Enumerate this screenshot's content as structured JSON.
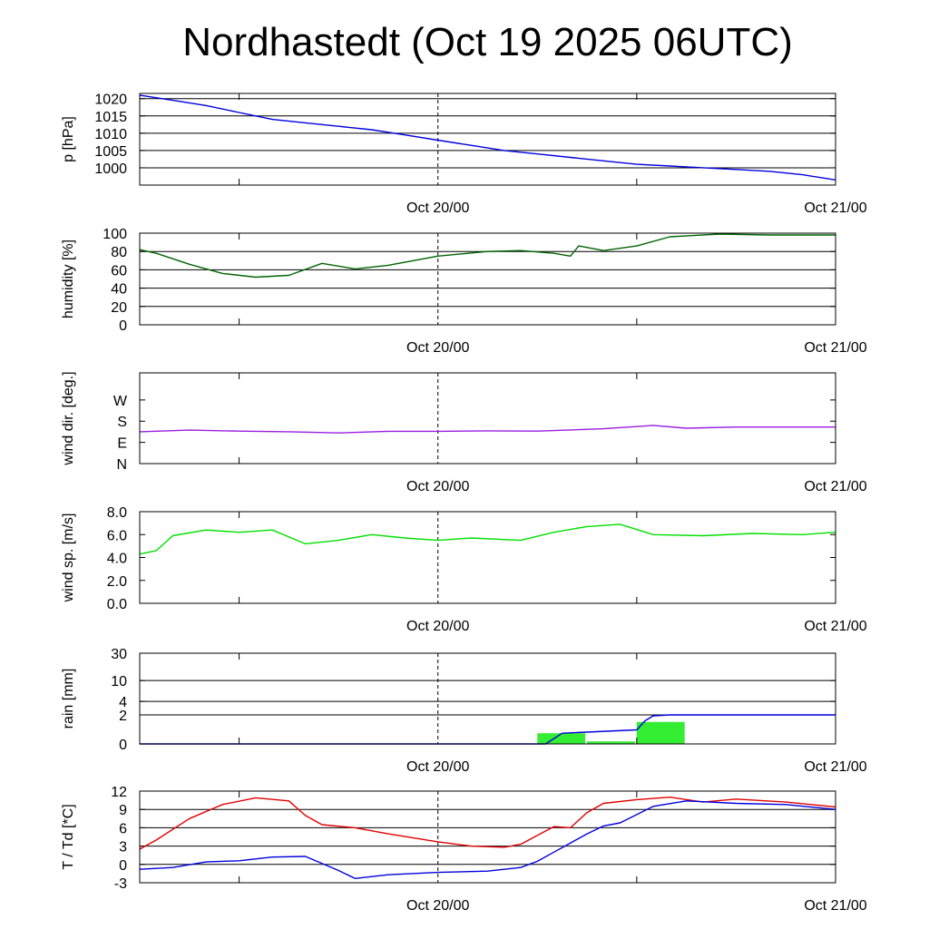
{
  "title": "Nordhastedt (Oct 19 2025 06UTC)",
  "x_axis": {
    "start": "2025-10-19 06:00 UTC",
    "end": "2025-10-21 00:00 UTC",
    "tick_labels": [
      {
        "t": "2025-10-20 00:00 UTC",
        "label": "Oct 20/00"
      },
      {
        "t": "2025-10-21 00:00 UTC",
        "label": "Oct 21/00"
      }
    ],
    "minor_ticks": [
      "2025-10-19 12:00 UTC",
      "2025-10-20 12:00 UTC"
    ],
    "divider": "2025-10-20 00:00 UTC"
  },
  "chart_data": [
    {
      "type": "line",
      "ylabel": "p [hPa]",
      "ylim": [
        995,
        1021.5
      ],
      "yticks": [
        1000,
        1005,
        1010,
        1015,
        1020
      ],
      "tick_labels": [
        "1000",
        "1005",
        "1010",
        "1015",
        "1020"
      ],
      "grid": true,
      "series": [
        {
          "color": "#0000dd",
          "points": [
            [
              "2025-10-19 06:00 UTC",
              1021.0
            ],
            [
              "2025-10-19 08:00 UTC",
              1019.5
            ],
            [
              "2025-10-19 10:00 UTC",
              1018.0
            ],
            [
              "2025-10-19 12:00 UTC",
              1016.0
            ],
            [
              "2025-10-19 14:00 UTC",
              1014.0
            ],
            [
              "2025-10-19 16:00 UTC",
              1013.0
            ],
            [
              "2025-10-19 18:00 UTC",
              1012.0
            ],
            [
              "2025-10-19 20:00 UTC",
              1011.0
            ],
            [
              "2025-10-19 22:00 UTC",
              1009.5
            ],
            [
              "2025-10-20 00:00 UTC",
              1008.0
            ],
            [
              "2025-10-20 02:00 UTC",
              1006.5
            ],
            [
              "2025-10-20 04:00 UTC",
              1005.0
            ],
            [
              "2025-10-20 06:00 UTC",
              1004.0
            ],
            [
              "2025-10-20 08:00 UTC",
              1003.0
            ],
            [
              "2025-10-20 10:00 UTC",
              1002.0
            ],
            [
              "2025-10-20 12:00 UTC",
              1001.0
            ],
            [
              "2025-10-20 14:00 UTC",
              1000.5
            ],
            [
              "2025-10-20 16:00 UTC",
              1000.0
            ],
            [
              "2025-10-20 18:00 UTC",
              999.5
            ],
            [
              "2025-10-20 20:00 UTC",
              999.0
            ],
            [
              "2025-10-20 22:00 UTC",
              998.0
            ],
            [
              "2025-10-21 00:00 UTC",
              996.5
            ]
          ]
        }
      ]
    },
    {
      "type": "line",
      "ylabel": "humidity [%]",
      "ylim": [
        0,
        100
      ],
      "yticks": [
        0,
        20,
        40,
        60,
        80,
        100
      ],
      "tick_labels": [
        "0",
        "20",
        "40",
        "60",
        "80",
        "100"
      ],
      "grid": true,
      "series": [
        {
          "color": "#006400",
          "points": [
            [
              "2025-10-19 06:00 UTC",
              82
            ],
            [
              "2025-10-19 07:00 UTC",
              78
            ],
            [
              "2025-10-19 09:00 UTC",
              66
            ],
            [
              "2025-10-19 11:00 UTC",
              56
            ],
            [
              "2025-10-19 13:00 UTC",
              52
            ],
            [
              "2025-10-19 15:00 UTC",
              54
            ],
            [
              "2025-10-19 17:00 UTC",
              67
            ],
            [
              "2025-10-19 19:00 UTC",
              61
            ],
            [
              "2025-10-19 21:00 UTC",
              65
            ],
            [
              "2025-10-20 00:00 UTC",
              75
            ],
            [
              "2025-10-20 03:00 UTC",
              80
            ],
            [
              "2025-10-20 05:00 UTC",
              81
            ],
            [
              "2025-10-20 07:00 UTC",
              78
            ],
            [
              "2025-10-20 08:00 UTC",
              75
            ],
            [
              "2025-10-20 08:30 UTC",
              86
            ],
            [
              "2025-10-20 10:00 UTC",
              81
            ],
            [
              "2025-10-20 12:00 UTC",
              86
            ],
            [
              "2025-10-20 14:00 UTC",
              96
            ],
            [
              "2025-10-20 17:00 UTC",
              99
            ],
            [
              "2025-10-20 20:00 UTC",
              98
            ],
            [
              "2025-10-21 00:00 UTC",
              98
            ]
          ]
        }
      ]
    },
    {
      "type": "line",
      "ylabel": "wind dir. [deg.]",
      "ylim": [
        0,
        385
      ],
      "yticks": [
        0,
        90,
        180,
        270
      ],
      "tick_labels": [
        "N",
        "E",
        "S",
        "W"
      ],
      "grid": false,
      "series": [
        {
          "color": "#9a1ee0",
          "points": [
            [
              "2025-10-19 06:00 UTC",
              135
            ],
            [
              "2025-10-19 09:00 UTC",
              142
            ],
            [
              "2025-10-19 12:00 UTC",
              138
            ],
            [
              "2025-10-19 15:00 UTC",
              135
            ],
            [
              "2025-10-19 18:00 UTC",
              130
            ],
            [
              "2025-10-19 21:00 UTC",
              137
            ],
            [
              "2025-10-20 00:00 UTC",
              137
            ],
            [
              "2025-10-20 03:00 UTC",
              139
            ],
            [
              "2025-10-20 06:00 UTC",
              138
            ],
            [
              "2025-10-20 08:00 UTC",
              143
            ],
            [
              "2025-10-20 10:00 UTC",
              148
            ],
            [
              "2025-10-20 13:00 UTC",
              162
            ],
            [
              "2025-10-20 15:00 UTC",
              150
            ],
            [
              "2025-10-20 18:00 UTC",
              155
            ],
            [
              "2025-10-21 00:00 UTC",
              155
            ]
          ]
        }
      ]
    },
    {
      "type": "line",
      "ylabel": "wind sp. [m/s]",
      "ylim": [
        0,
        8
      ],
      "yticks": [
        0,
        2,
        4,
        6,
        8
      ],
      "tick_labels": [
        "0.0",
        "2.0",
        "4.0",
        "6.0",
        "8.0"
      ],
      "grid": false,
      "series": [
        {
          "color": "#00e000",
          "points": [
            [
              "2025-10-19 06:00 UTC",
              4.3
            ],
            [
              "2025-10-19 07:00 UTC",
              4.6
            ],
            [
              "2025-10-19 08:00 UTC",
              5.9
            ],
            [
              "2025-10-19 10:00 UTC",
              6.4
            ],
            [
              "2025-10-19 12:00 UTC",
              6.2
            ],
            [
              "2025-10-19 14:00 UTC",
              6.4
            ],
            [
              "2025-10-19 16:00 UTC",
              5.2
            ],
            [
              "2025-10-19 18:00 UTC",
              5.5
            ],
            [
              "2025-10-19 20:00 UTC",
              6.0
            ],
            [
              "2025-10-19 22:00 UTC",
              5.7
            ],
            [
              "2025-10-20 00:00 UTC",
              5.5
            ],
            [
              "2025-10-20 02:00 UTC",
              5.7
            ],
            [
              "2025-10-20 05:00 UTC",
              5.5
            ],
            [
              "2025-10-20 07:00 UTC",
              6.2
            ],
            [
              "2025-10-20 09:00 UTC",
              6.7
            ],
            [
              "2025-10-20 11:00 UTC",
              6.9
            ],
            [
              "2025-10-20 13:00 UTC",
              6.0
            ],
            [
              "2025-10-20 16:00 UTC",
              5.9
            ],
            [
              "2025-10-20 19:00 UTC",
              6.1
            ],
            [
              "2025-10-20 22:00 UTC",
              6.0
            ],
            [
              "2025-10-21 00:00 UTC",
              6.2
            ]
          ]
        }
      ]
    },
    {
      "type": "bar",
      "ylabel": "rain [mm]",
      "ylim": [
        0,
        30
      ],
      "yticks": [
        0,
        2,
        4,
        10,
        30
      ],
      "tick_labels": [
        "0",
        "2",
        "4",
        "10",
        "30"
      ],
      "grid": true,
      "bars": {
        "color": "#33ee33",
        "items": [
          {
            "start": "2025-10-20 06:00 UTC",
            "end": "2025-10-20 09:00 UTC",
            "value": 0.5
          },
          {
            "start": "2025-10-20 09:00 UTC",
            "end": "2025-10-20 12:00 UTC",
            "value": 0.1
          },
          {
            "start": "2025-10-20 12:00 UTC",
            "end": "2025-10-20 15:00 UTC",
            "value": 1.3
          }
        ]
      },
      "series": [
        {
          "color": "#0000dd",
          "points": [
            [
              "2025-10-19 06:00 UTC",
              0.0
            ],
            [
              "2025-10-20 06:30 UTC",
              0.0
            ],
            [
              "2025-10-20 07:30 UTC",
              0.5
            ],
            [
              "2025-10-20 12:00 UTC",
              0.7
            ],
            [
              "2025-10-20 12:30 UTC",
              1.4
            ],
            [
              "2025-10-20 13:00 UTC",
              1.9
            ],
            [
              "2025-10-20 14:00 UTC",
              2.0
            ],
            [
              "2025-10-21 00:00 UTC",
              2.0
            ]
          ]
        }
      ]
    },
    {
      "type": "line",
      "ylabel": "T / Td [*C]",
      "ylim": [
        -3,
        12
      ],
      "yticks": [
        -3,
        0,
        3,
        6,
        9,
        12
      ],
      "tick_labels": [
        "-3",
        "0",
        "3",
        "6",
        "9",
        "12"
      ],
      "grid": true,
      "series": [
        {
          "color": "#e00000",
          "points": [
            [
              "2025-10-19 06:00 UTC",
              2.5
            ],
            [
              "2025-10-19 07:00 UTC",
              4.0
            ],
            [
              "2025-10-19 09:00 UTC",
              7.5
            ],
            [
              "2025-10-19 11:00 UTC",
              9.8
            ],
            [
              "2025-10-19 13:00 UTC",
              10.9
            ],
            [
              "2025-10-19 15:00 UTC",
              10.4
            ],
            [
              "2025-10-19 16:00 UTC",
              8.0
            ],
            [
              "2025-10-19 17:00 UTC",
              6.5
            ],
            [
              "2025-10-19 19:00 UTC",
              6.0
            ],
            [
              "2025-10-19 21:00 UTC",
              5.0
            ],
            [
              "2025-10-20 00:00 UTC",
              3.7
            ],
            [
              "2025-10-20 02:00 UTC",
              3.0
            ],
            [
              "2025-10-20 04:00 UTC",
              2.8
            ],
            [
              "2025-10-20 05:00 UTC",
              3.3
            ],
            [
              "2025-10-20 07:00 UTC",
              6.2
            ],
            [
              "2025-10-20 08:00 UTC",
              6.0
            ],
            [
              "2025-10-20 09:00 UTC",
              8.5
            ],
            [
              "2025-10-20 10:00 UTC",
              10.0
            ],
            [
              "2025-10-20 12:00 UTC",
              10.6
            ],
            [
              "2025-10-20 14:00 UTC",
              11.0
            ],
            [
              "2025-10-20 16:00 UTC",
              10.2
            ],
            [
              "2025-10-20 18:00 UTC",
              10.7
            ],
            [
              "2025-10-20 21:00 UTC",
              10.2
            ],
            [
              "2025-10-21 00:00 UTC",
              9.4
            ]
          ]
        },
        {
          "color": "#0000dd",
          "points": [
            [
              "2025-10-19 06:00 UTC",
              -0.8
            ],
            [
              "2025-10-19 08:00 UTC",
              -0.5
            ],
            [
              "2025-10-19 10:00 UTC",
              0.4
            ],
            [
              "2025-10-19 12:00 UTC",
              0.6
            ],
            [
              "2025-10-19 14:00 UTC",
              1.2
            ],
            [
              "2025-10-19 16:00 UTC",
              1.3
            ],
            [
              "2025-10-19 18:00 UTC",
              -1.0
            ],
            [
              "2025-10-19 19:00 UTC",
              -2.3
            ],
            [
              "2025-10-19 21:00 UTC",
              -1.7
            ],
            [
              "2025-10-20 00:00 UTC",
              -1.3
            ],
            [
              "2025-10-20 03:00 UTC",
              -1.1
            ],
            [
              "2025-10-20 05:00 UTC",
              -0.5
            ],
            [
              "2025-10-20 06:00 UTC",
              0.5
            ],
            [
              "2025-10-20 07:00 UTC",
              2.0
            ],
            [
              "2025-10-20 08:00 UTC",
              3.5
            ],
            [
              "2025-10-20 09:00 UTC",
              5.0
            ],
            [
              "2025-10-20 10:00 UTC",
              6.3
            ],
            [
              "2025-10-20 11:00 UTC",
              6.8
            ],
            [
              "2025-10-20 13:00 UTC",
              9.5
            ],
            [
              "2025-10-20 15:00 UTC",
              10.4
            ],
            [
              "2025-10-20 18:00 UTC",
              10.0
            ],
            [
              "2025-10-20 21:00 UTC",
              9.8
            ],
            [
              "2025-10-21 00:00 UTC",
              9.0
            ]
          ]
        }
      ]
    }
  ]
}
